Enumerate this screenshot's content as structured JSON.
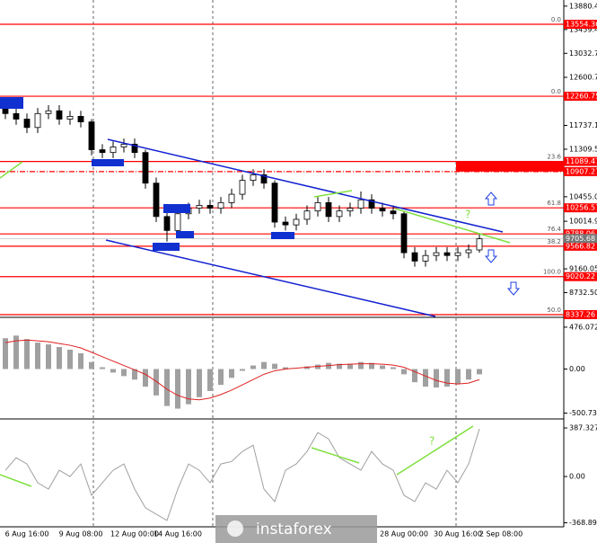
{
  "watermark": "instaforex",
  "chart_data": [
    {
      "type": "candlestick",
      "categories": [
        null,
        null,
        "6 Aug 16:00",
        null,
        null,
        null,
        null,
        "9 Aug 08:00",
        null,
        null,
        null,
        null,
        "12 Aug 00:00",
        null,
        null,
        null,
        "14 Aug 16:00",
        null,
        null,
        null,
        null,
        null,
        null,
        null,
        null,
        null,
        null,
        null,
        null,
        null,
        null,
        null,
        null,
        null,
        null,
        null,
        null,
        "28 Aug 00:00",
        null,
        null,
        null,
        null,
        "30 Aug 16:00",
        null,
        null,
        null,
        "2 Sep 08:00",
        null,
        null
      ],
      "open": [
        12050,
        11950,
        11850,
        11700,
        11950,
        12000,
        11850,
        11900,
        11800,
        11300,
        11250,
        11350,
        11400,
        11250,
        10700,
        10100,
        9850,
        10150,
        10250,
        10300,
        10250,
        10350,
        10500,
        10750,
        10850,
        10700,
        10000,
        9950,
        10050,
        10200,
        10350,
        10100,
        10200,
        10250,
        10400,
        10250,
        10200,
        10150,
        9450,
        9300,
        9400,
        9450,
        9400,
        9450,
        9500,
        null,
        null,
        null,
        null
      ],
      "high": [
        12150,
        12050,
        11950,
        12050,
        12100,
        12100,
        12000,
        12000,
        11850,
        11400,
        11450,
        11500,
        11500,
        11300,
        10800,
        10200,
        10250,
        10350,
        10400,
        10400,
        10450,
        10600,
        10850,
        10950,
        10950,
        10750,
        10100,
        10150,
        10300,
        10450,
        10450,
        10300,
        10350,
        10550,
        10500,
        10350,
        10300,
        10200,
        9550,
        9500,
        9550,
        9550,
        9550,
        9600,
        9800,
        null,
        null,
        null,
        null
      ],
      "low": [
        11850,
        11750,
        11600,
        11600,
        11850,
        11750,
        11750,
        11700,
        11200,
        11150,
        11150,
        11250,
        11150,
        10600,
        10000,
        9650,
        9750,
        10050,
        10150,
        10150,
        10150,
        10250,
        10400,
        10650,
        10600,
        9900,
        9850,
        9850,
        9950,
        10100,
        10000,
        10000,
        10100,
        10150,
        10150,
        10100,
        10050,
        9350,
        9200,
        9200,
        9300,
        9300,
        9300,
        9350,
        9450,
        null,
        null,
        null,
        null
      ],
      "close": [
        11950,
        11850,
        11700,
        11950,
        12000,
        11850,
        11900,
        11800,
        11300,
        11250,
        11350,
        11400,
        11250,
        10700,
        10100,
        9850,
        10150,
        10250,
        10300,
        10250,
        10350,
        10500,
        10750,
        10850,
        10700,
        10000,
        9950,
        10050,
        10200,
        10350,
        10100,
        10200,
        10250,
        10400,
        10250,
        10200,
        10150,
        9450,
        9300,
        9400,
        9450,
        9400,
        9450,
        9500,
        9700,
        null,
        null,
        null,
        null
      ],
      "up_color": "#ffffff",
      "down_color": "#000000",
      "color": "#000000",
      "ylim": [
        8305,
        13990
      ],
      "yticks": [
        13880.45,
        13459.45,
        {
          "value": 13032.7,
          "label": "13032.70"
        },
        12600.75,
        {
          "value": 11737.1,
          "label": "11737.10"
        },
        {
          "value": 11309.5,
          "label": "11309.50"
        },
        10455.05,
        {
          "value": 10014.9,
          "label": "10014.90"
        },
        9160.05,
        {
          "value": 8732.5,
          "label": "8732.50"
        }
      ],
      "levels": [
        {
          "value": 13554.36,
          "fib": "0.0"
        },
        {
          "value": 12260.75,
          "fib": "0.0"
        },
        {
          "value": 11089.47,
          "fib": "23.6"
        },
        {
          "value": 10907.27
        },
        {
          "value": 10256.57,
          "fib": "61.8"
        },
        {
          "value": 9788.06,
          "fib": "76.4"
        },
        {
          "value": 9566.82,
          "fib": "38.2"
        },
        {
          "value": 9020.22,
          "fib": "100.0"
        },
        {
          "value": 8337.26,
          "fib": "50.0"
        }
      ],
      "level_color": "#ff0000",
      "bid_price": 9705.68,
      "annotations": [
        "?"
      ]
    },
    {
      "type": "histogram",
      "values": [
        350,
        380,
        340,
        300,
        280,
        250,
        220,
        180,
        80,
        20,
        -40,
        -80,
        -120,
        -200,
        -300,
        -420,
        -450,
        -400,
        -320,
        -250,
        -180,
        -100,
        -20,
        40,
        80,
        60,
        20,
        0,
        30,
        50,
        70,
        60,
        60,
        80,
        70,
        40,
        20,
        -60,
        -150,
        -200,
        -210,
        -200,
        -170,
        -120,
        -60,
        null,
        null,
        null,
        null
      ],
      "signal": [
        300,
        320,
        330,
        320,
        310,
        290,
        270,
        240,
        190,
        140,
        90,
        40,
        -10,
        -60,
        -140,
        -230,
        -300,
        -340,
        -350,
        -330,
        -290,
        -240,
        -180,
        -120,
        -60,
        -20,
        0,
        10,
        20,
        30,
        40,
        50,
        55,
        60,
        60,
        55,
        45,
        20,
        -30,
        -80,
        -130,
        -160,
        -170,
        -160,
        -120,
        null,
        null,
        null,
        null
      ],
      "color": "#a0a0a0",
      "signal_color": "#e02020",
      "ylim": [
        -557,
        567
      ],
      "yticks": [
        476.072,
        {
          "value": 0,
          "label": "0.00"
        },
        -500.734
      ]
    },
    {
      "type": "line",
      "values": [
        50,
        150,
        100,
        -50,
        -100,
        50,
        0,
        100,
        -150,
        -50,
        50,
        100,
        -100,
        -250,
        -300,
        -350,
        -100,
        100,
        50,
        -50,
        100,
        120,
        200,
        250,
        -100,
        -200,
        50,
        100,
        200,
        350,
        300,
        150,
        100,
        50,
        200,
        100,
        50,
        -150,
        -200,
        -50,
        -100,
        50,
        -50,
        100,
        380,
        null,
        null,
        null,
        null
      ],
      "color": "#a0a0a0",
      "ylim": [
        -401,
        452
      ],
      "yticks": [
        387.327,
        {
          "value": 0,
          "label": "0.00"
        },
        -368.8918
      ],
      "annotations": [
        "?"
      ]
    }
  ]
}
